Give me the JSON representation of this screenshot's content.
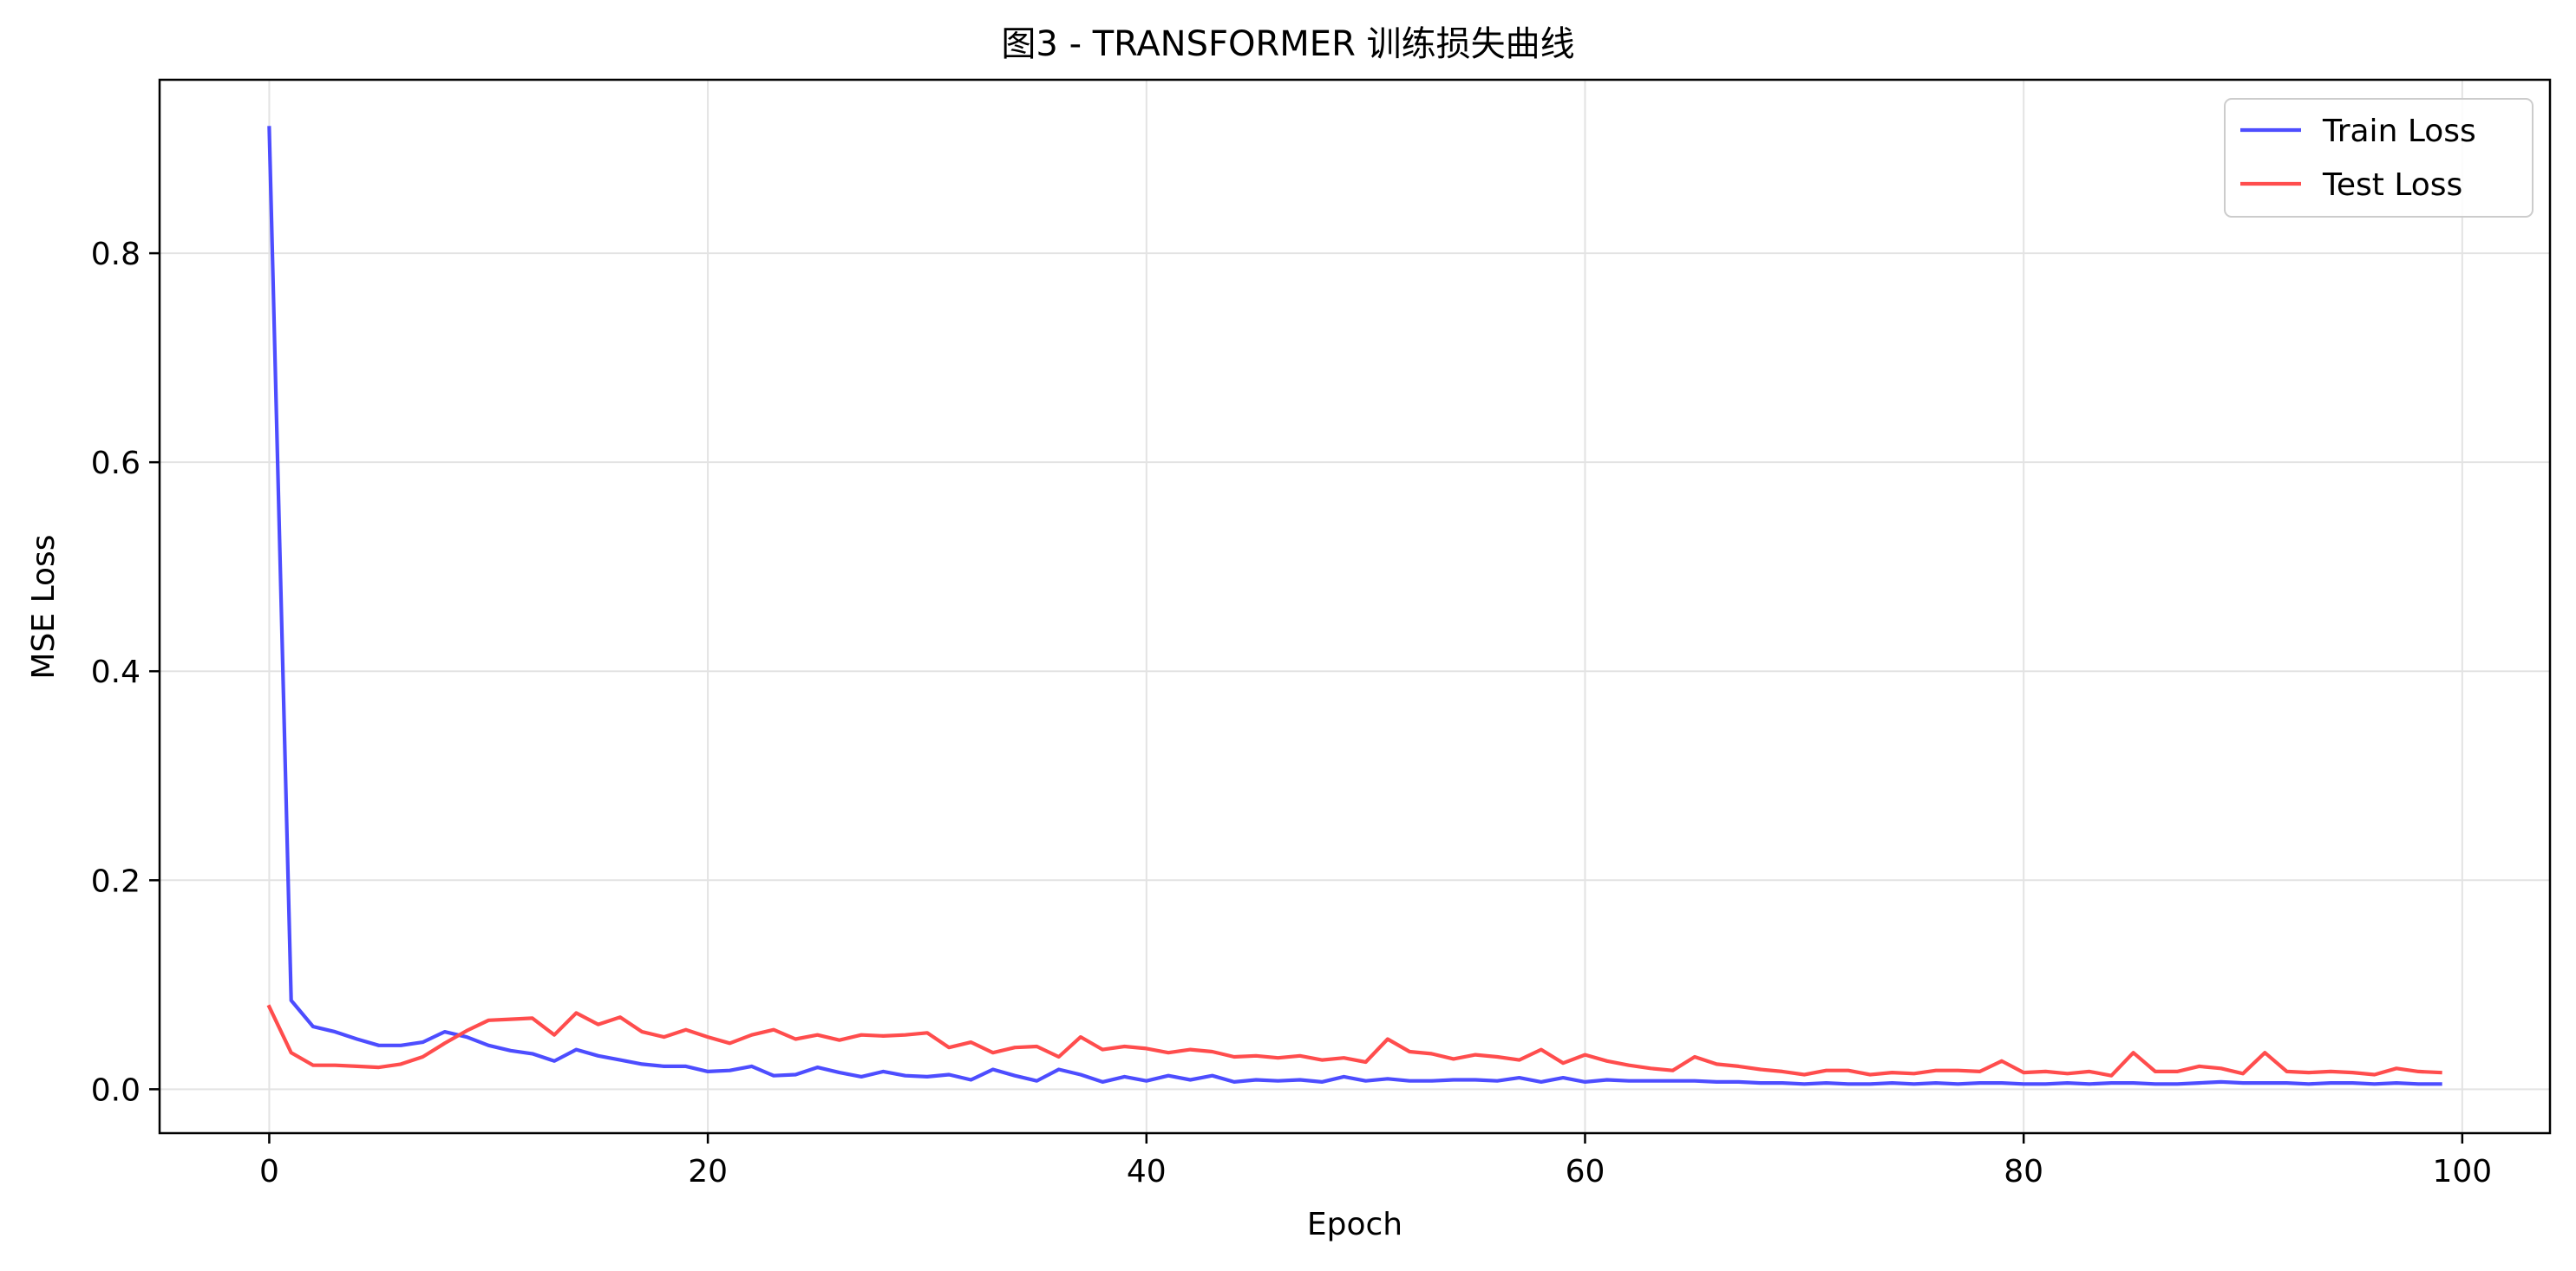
{
  "chart_data": {
    "type": "line",
    "title": "图3 - TRANSFORMER 训练损失曲线",
    "xlabel": "Epoch",
    "ylabel": "MSE Loss",
    "xlim": [
      -5,
      104
    ],
    "ylim": [
      -0.042,
      0.966
    ],
    "xticks": [
      0,
      20,
      40,
      60,
      80,
      100
    ],
    "yticks": [
      0.0,
      0.2,
      0.4,
      0.6,
      0.8
    ],
    "xtick_labels": [
      "0",
      "20",
      "40",
      "60",
      "80",
      "100"
    ],
    "ytick_labels": [
      "0.0",
      "0.2",
      "0.4",
      "0.6",
      "0.8"
    ],
    "grid": true,
    "legend_position": "top-right",
    "x": [
      0,
      1,
      2,
      3,
      4,
      5,
      6,
      7,
      8,
      9,
      10,
      11,
      12,
      13,
      14,
      15,
      16,
      17,
      18,
      19,
      20,
      21,
      22,
      23,
      24,
      25,
      26,
      27,
      28,
      29,
      30,
      31,
      32,
      33,
      34,
      35,
      36,
      37,
      38,
      39,
      40,
      41,
      42,
      43,
      44,
      45,
      46,
      47,
      48,
      49,
      50,
      51,
      52,
      53,
      54,
      55,
      56,
      57,
      58,
      59,
      60,
      61,
      62,
      63,
      64,
      65,
      66,
      67,
      68,
      69,
      70,
      71,
      72,
      73,
      74,
      75,
      76,
      77,
      78,
      79,
      80,
      81,
      82,
      83,
      84,
      85,
      86,
      87,
      88,
      89,
      90,
      91,
      92,
      93,
      94,
      95,
      96,
      97,
      98,
      99
    ],
    "series": [
      {
        "name": "Train Loss",
        "color": "#4d4dff",
        "values": [
          0.92,
          0.085,
          0.06,
          0.055,
          0.048,
          0.042,
          0.042,
          0.045,
          0.055,
          0.05,
          0.042,
          0.037,
          0.034,
          0.027,
          0.038,
          0.032,
          0.028,
          0.024,
          0.022,
          0.022,
          0.017,
          0.018,
          0.022,
          0.013,
          0.014,
          0.021,
          0.016,
          0.012,
          0.017,
          0.013,
          0.012,
          0.014,
          0.009,
          0.019,
          0.013,
          0.008,
          0.019,
          0.014,
          0.007,
          0.012,
          0.008,
          0.013,
          0.009,
          0.013,
          0.007,
          0.009,
          0.008,
          0.009,
          0.007,
          0.012,
          0.008,
          0.01,
          0.008,
          0.008,
          0.009,
          0.009,
          0.008,
          0.011,
          0.007,
          0.011,
          0.007,
          0.009,
          0.008,
          0.008,
          0.008,
          0.008,
          0.007,
          0.007,
          0.006,
          0.006,
          0.005,
          0.006,
          0.005,
          0.005,
          0.006,
          0.005,
          0.006,
          0.005,
          0.006,
          0.006,
          0.005,
          0.005,
          0.006,
          0.005,
          0.006,
          0.006,
          0.005,
          0.005,
          0.006,
          0.007,
          0.006,
          0.006,
          0.006,
          0.005,
          0.006,
          0.006,
          0.005,
          0.006,
          0.005,
          0.005
        ]
      },
      {
        "name": "Test Loss",
        "color": "#ff4d4d",
        "values": [
          0.079,
          0.035,
          0.023,
          0.023,
          0.022,
          0.021,
          0.024,
          0.031,
          0.044,
          0.056,
          0.066,
          0.067,
          0.068,
          0.052,
          0.073,
          0.062,
          0.069,
          0.055,
          0.05,
          0.057,
          0.05,
          0.044,
          0.052,
          0.057,
          0.048,
          0.052,
          0.047,
          0.052,
          0.051,
          0.052,
          0.054,
          0.04,
          0.045,
          0.035,
          0.04,
          0.041,
          0.031,
          0.05,
          0.038,
          0.041,
          0.039,
          0.035,
          0.038,
          0.036,
          0.031,
          0.032,
          0.03,
          0.032,
          0.028,
          0.03,
          0.026,
          0.048,
          0.036,
          0.034,
          0.029,
          0.033,
          0.031,
          0.028,
          0.038,
          0.025,
          0.033,
          0.027,
          0.023,
          0.02,
          0.018,
          0.031,
          0.024,
          0.022,
          0.019,
          0.017,
          0.014,
          0.018,
          0.018,
          0.014,
          0.016,
          0.015,
          0.018,
          0.018,
          0.017,
          0.027,
          0.016,
          0.017,
          0.015,
          0.017,
          0.013,
          0.035,
          0.017,
          0.017,
          0.022,
          0.02,
          0.015,
          0.035,
          0.017,
          0.016,
          0.017,
          0.016,
          0.014,
          0.02,
          0.017,
          0.016
        ]
      }
    ]
  }
}
